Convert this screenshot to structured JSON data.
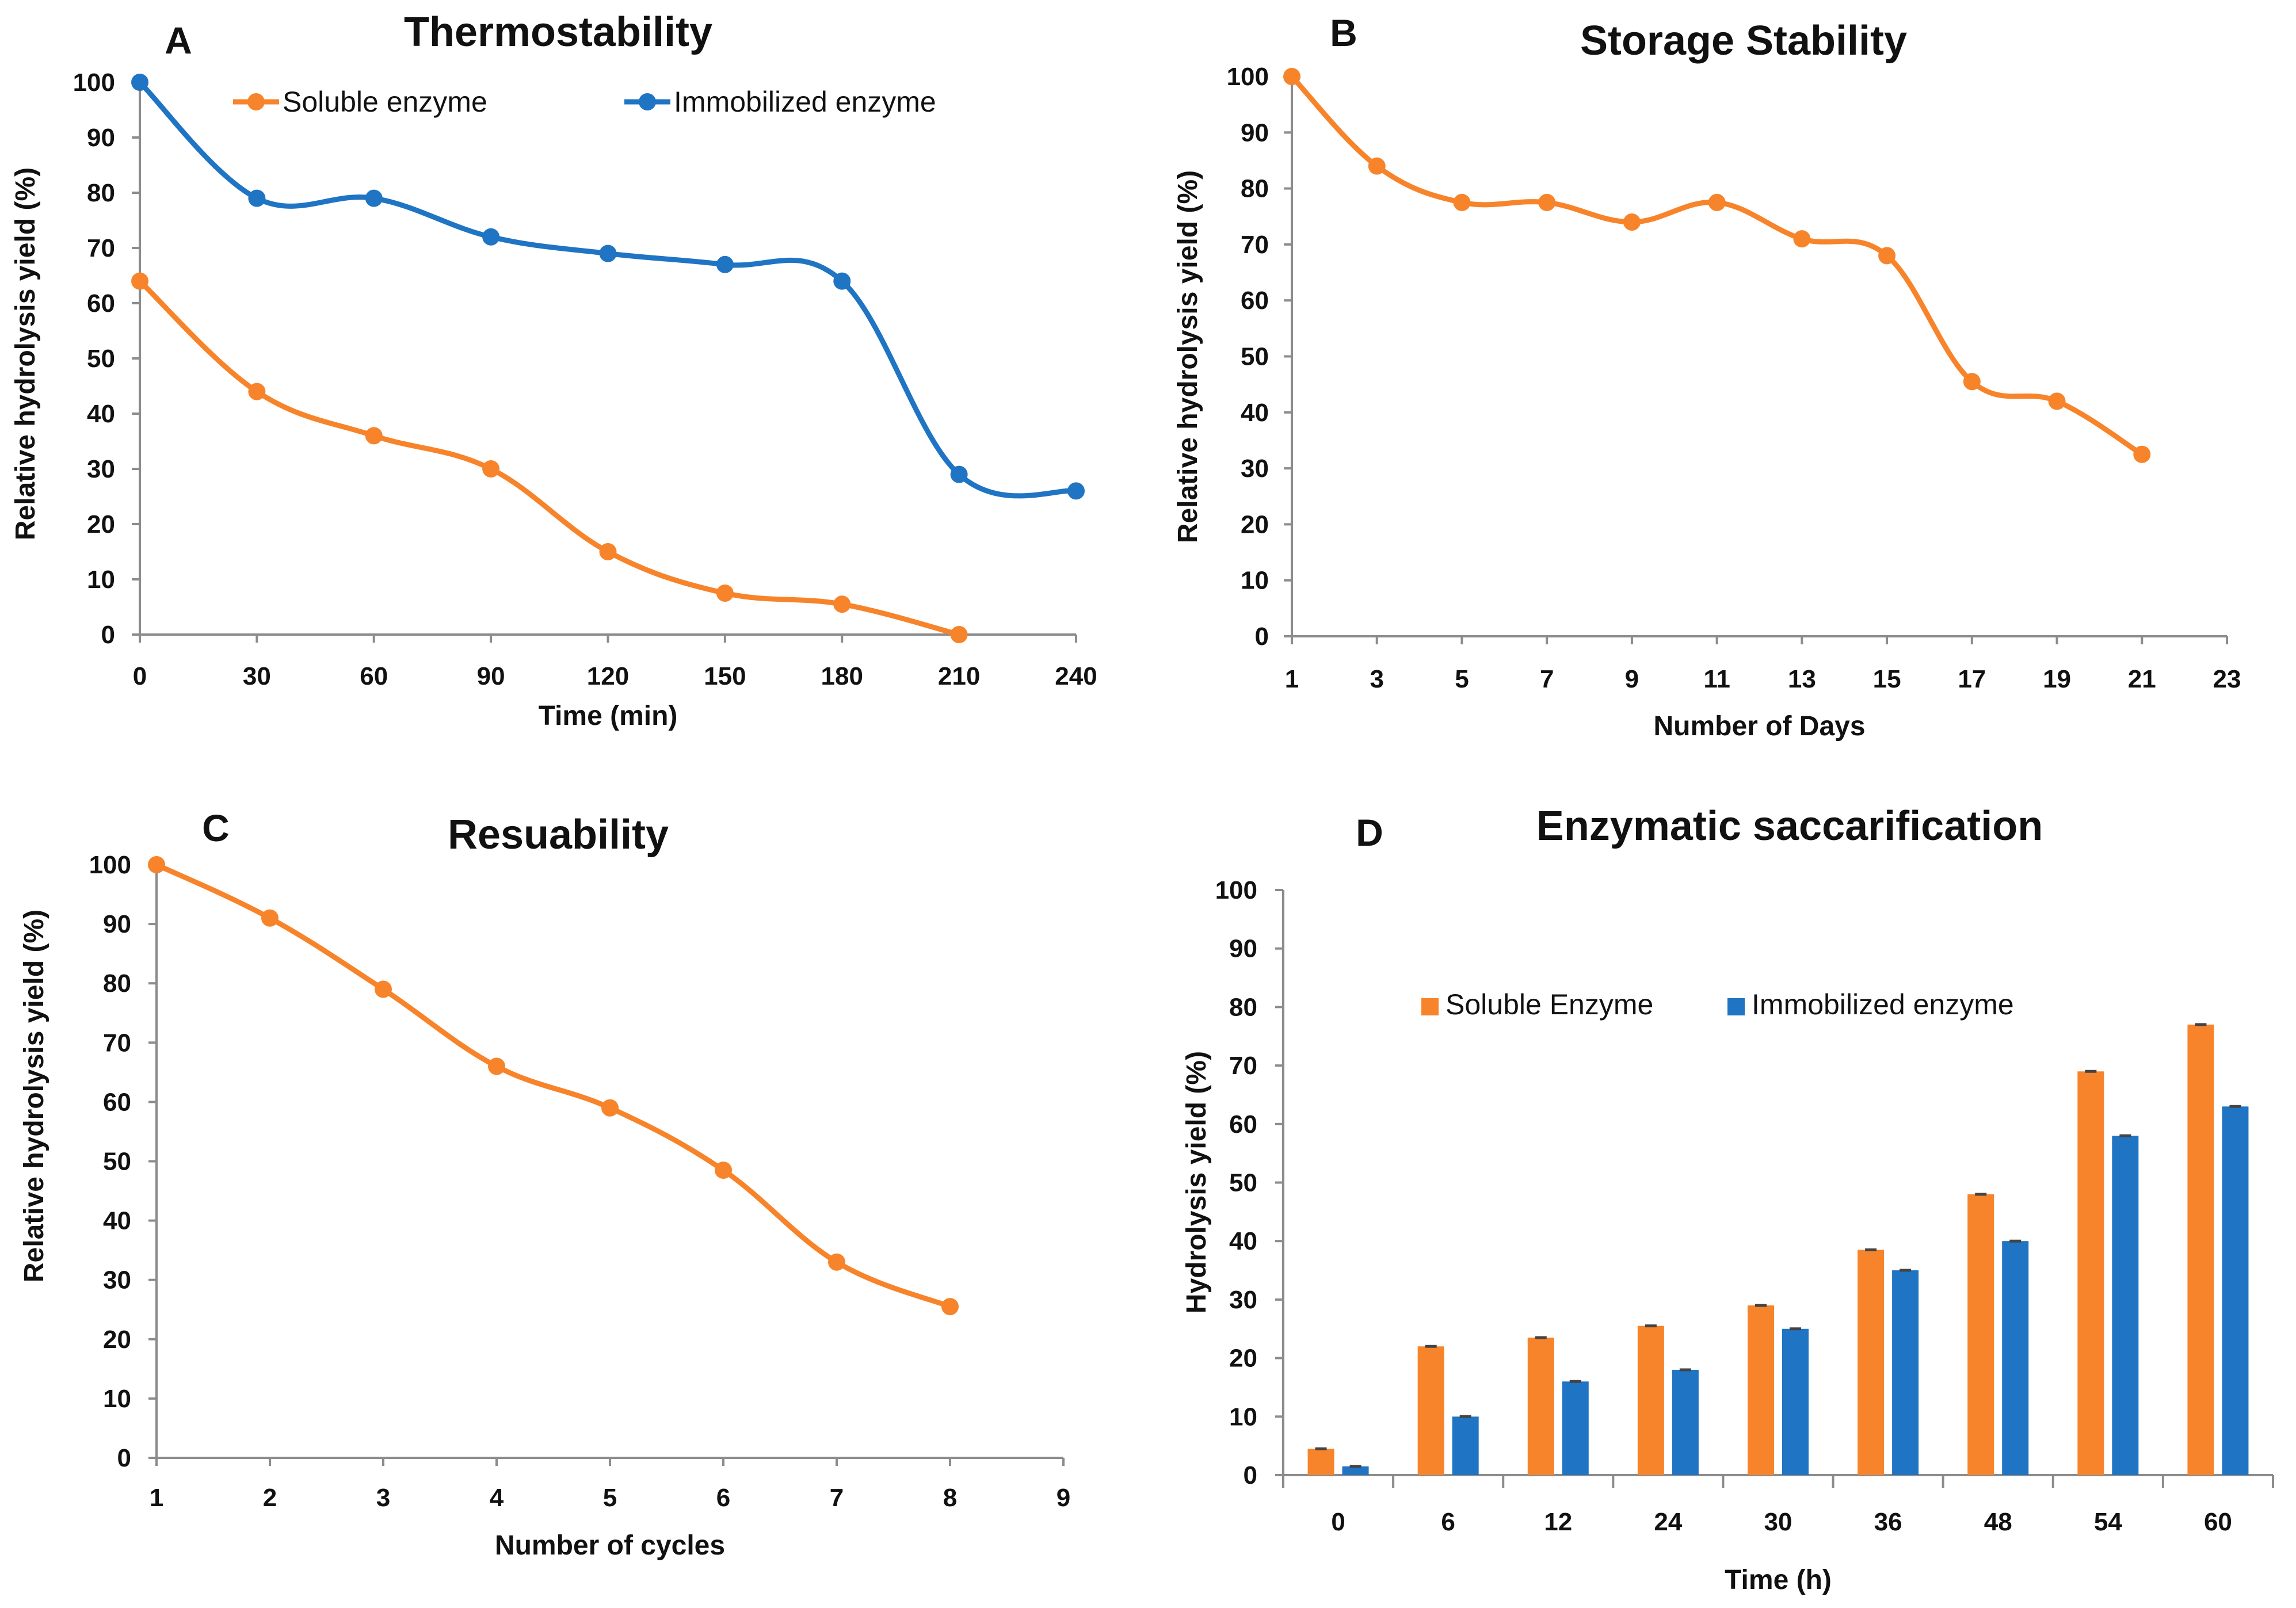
{
  "colors": {
    "orange": "#F7842A",
    "blue": "#1F74C4",
    "axis": "#8C8C8C",
    "text": "#111111",
    "errorbar": "#444444"
  },
  "chart_data": [
    {
      "id": "A",
      "type": "line",
      "letter": "A",
      "title": "Thermostability",
      "xlabel": "Time (min)",
      "ylabel": "Relative hydrolysis yield  (%)",
      "xlim": [
        0,
        240
      ],
      "ylim": [
        0,
        100
      ],
      "xticks": [
        0,
        30,
        60,
        90,
        120,
        150,
        180,
        210,
        240
      ],
      "xtick_labels": [
        "0",
        "30",
        "60",
        "90",
        "120",
        "150",
        "180",
        "210",
        "240"
      ],
      "yticks": [
        0,
        10,
        20,
        30,
        40,
        50,
        60,
        70,
        80,
        90,
        100
      ],
      "ytick_labels": [
        "0",
        "10",
        "20",
        "30",
        "40",
        "50",
        "60",
        "70",
        "80",
        "90",
        "100"
      ],
      "legend": {
        "position": "top"
      },
      "series": [
        {
          "name": "Soluble enzyme",
          "color": "orange",
          "x": [
            0,
            30,
            60,
            90,
            120,
            150,
            180,
            210
          ],
          "y": [
            64,
            44,
            36,
            30,
            15,
            7.5,
            5.5,
            0
          ]
        },
        {
          "name": "Immobilized enzyme",
          "color": "blue",
          "x": [
            0,
            30,
            60,
            90,
            120,
            150,
            180,
            210,
            240
          ],
          "y": [
            100,
            79,
            79,
            72,
            69,
            67,
            64,
            29,
            26
          ]
        }
      ]
    },
    {
      "id": "B",
      "type": "line",
      "letter": "B",
      "title": "Storage Stability",
      "xlabel": "Number of Days",
      "ylabel": "Relative hydrolysis yield  (%)",
      "xlim": [
        1,
        23
      ],
      "ylim": [
        0,
        100
      ],
      "xticks": [
        1,
        3,
        5,
        7,
        9,
        11,
        13,
        15,
        17,
        19,
        21,
        23
      ],
      "xtick_labels": [
        "1",
        "3",
        "5",
        "7",
        "9",
        "11",
        "13",
        "15",
        "17",
        "19",
        "21",
        "23"
      ],
      "yticks": [
        0,
        10,
        20,
        30,
        40,
        50,
        60,
        70,
        80,
        90,
        100
      ],
      "ytick_labels": [
        "0",
        "10",
        "20",
        "30",
        "40",
        "50",
        "60",
        "70",
        "80",
        "90",
        "100"
      ],
      "series": [
        {
          "name": "Storage",
          "color": "orange",
          "x": [
            1,
            3,
            5,
            7,
            9,
            11,
            13,
            15,
            17,
            19,
            21
          ],
          "y": [
            100,
            84,
            77.5,
            77.5,
            74,
            77.5,
            71,
            68,
            45.5,
            42,
            32.5
          ]
        }
      ]
    },
    {
      "id": "C",
      "type": "line",
      "letter": "C",
      "title": "Resuability",
      "xlabel": "Number of cycles",
      "ylabel": "Relative hydrolysis yield (%)",
      "xlim": [
        1,
        9
      ],
      "ylim": [
        0,
        100
      ],
      "xticks": [
        1,
        2,
        3,
        4,
        5,
        6,
        7,
        8,
        9
      ],
      "xtick_labels": [
        "1",
        "2",
        "3",
        "4",
        "5",
        "6",
        "7",
        "8",
        "9"
      ],
      "yticks": [
        0,
        10,
        20,
        30,
        40,
        50,
        60,
        70,
        80,
        90,
        100
      ],
      "ytick_labels": [
        "0",
        "10",
        "20",
        "30",
        "40",
        "50",
        "60",
        "70",
        "80",
        "90",
        "100"
      ],
      "series": [
        {
          "name": "Reusability",
          "color": "orange",
          "x": [
            1,
            2,
            3,
            4,
            5,
            6,
            7,
            8
          ],
          "y": [
            100,
            91,
            79,
            66,
            59,
            48.5,
            33,
            25.5
          ]
        }
      ]
    },
    {
      "id": "D",
      "type": "bar",
      "letter": "D",
      "title": "Enzymatic saccarification",
      "xlabel": "Time (h)",
      "ylabel": "Hydrolysis  yield (%)",
      "ylim": [
        0,
        100
      ],
      "categories": [
        "0",
        "6",
        "12",
        "24",
        "30",
        "36",
        "48",
        "54",
        "60"
      ],
      "yticks": [
        0,
        10,
        20,
        30,
        40,
        50,
        60,
        70,
        80,
        90,
        100
      ],
      "ytick_labels": [
        "0",
        "10",
        "20",
        "30",
        "40",
        "50",
        "60",
        "70",
        "80",
        "90",
        "100"
      ],
      "legend": {
        "position": "top-left"
      },
      "series": [
        {
          "name": "Soluble Enzyme",
          "color": "orange",
          "values": [
            4.5,
            22,
            23.5,
            25.5,
            29,
            38.5,
            48,
            69,
            77
          ]
        },
        {
          "name": "Immobilized enzyme",
          "color": "blue",
          "values": [
            1.5,
            10,
            16,
            18,
            25,
            35,
            40,
            58,
            63
          ]
        }
      ]
    }
  ]
}
